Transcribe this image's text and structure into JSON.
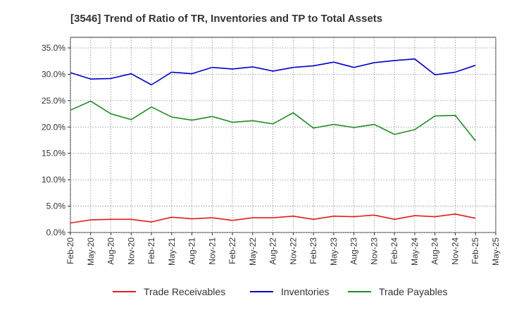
{
  "chart_data": {
    "type": "line",
    "title": "[3546]  Trend of Ratio of TR, Inventories and TP to Total Assets",
    "xlabel": "",
    "ylabel": "",
    "ylim": [
      0,
      37
    ],
    "yticks": [
      "0.0%",
      "5.0%",
      "10.0%",
      "15.0%",
      "20.0%",
      "25.0%",
      "30.0%",
      "35.0%"
    ],
    "ytick_values": [
      0,
      5,
      10,
      15,
      20,
      25,
      30,
      35
    ],
    "xticks": [
      "Feb-20",
      "May-20",
      "Aug-20",
      "Nov-20",
      "Feb-21",
      "May-21",
      "Aug-21",
      "Nov-21",
      "Feb-22",
      "May-22",
      "Aug-22",
      "Nov-22",
      "Feb-23",
      "May-23",
      "Aug-23",
      "Nov-23",
      "Feb-24",
      "May-24",
      "Aug-24",
      "Nov-24",
      "Feb-25",
      "May-25"
    ],
    "x": [
      "Feb-20",
      "May-20",
      "Aug-20",
      "Nov-20",
      "Feb-21",
      "May-21",
      "Aug-21",
      "Nov-21",
      "Feb-22",
      "May-22",
      "Aug-22",
      "Nov-22",
      "Feb-23",
      "May-23",
      "Aug-23",
      "Nov-23",
      "Feb-24",
      "May-24",
      "Aug-24",
      "Nov-24",
      "Feb-25"
    ],
    "grid": true,
    "legend_position": "bottom",
    "series": [
      {
        "name": "Trade Receivables",
        "color": "#e41a1c",
        "values": [
          1.8,
          2.4,
          2.5,
          2.5,
          2.0,
          2.9,
          2.6,
          2.8,
          2.3,
          2.8,
          2.8,
          3.1,
          2.5,
          3.1,
          3.0,
          3.3,
          2.5,
          3.2,
          3.0,
          3.5,
          2.7
        ]
      },
      {
        "name": "Inventories",
        "color": "#0000cc",
        "values": [
          30.3,
          29.1,
          29.2,
          30.1,
          28.0,
          30.4,
          30.1,
          31.3,
          31.0,
          31.4,
          30.6,
          31.3,
          31.6,
          32.3,
          31.3,
          32.2,
          32.6,
          32.9,
          29.9,
          30.4,
          31.7
        ]
      },
      {
        "name": "Trade Payables",
        "color": "#228b22",
        "values": [
          23.2,
          24.9,
          22.5,
          21.4,
          23.8,
          21.9,
          21.3,
          22.0,
          20.9,
          21.2,
          20.6,
          22.7,
          19.8,
          20.5,
          19.9,
          20.5,
          18.6,
          19.5,
          22.1,
          22.2,
          17.4
        ]
      }
    ]
  }
}
